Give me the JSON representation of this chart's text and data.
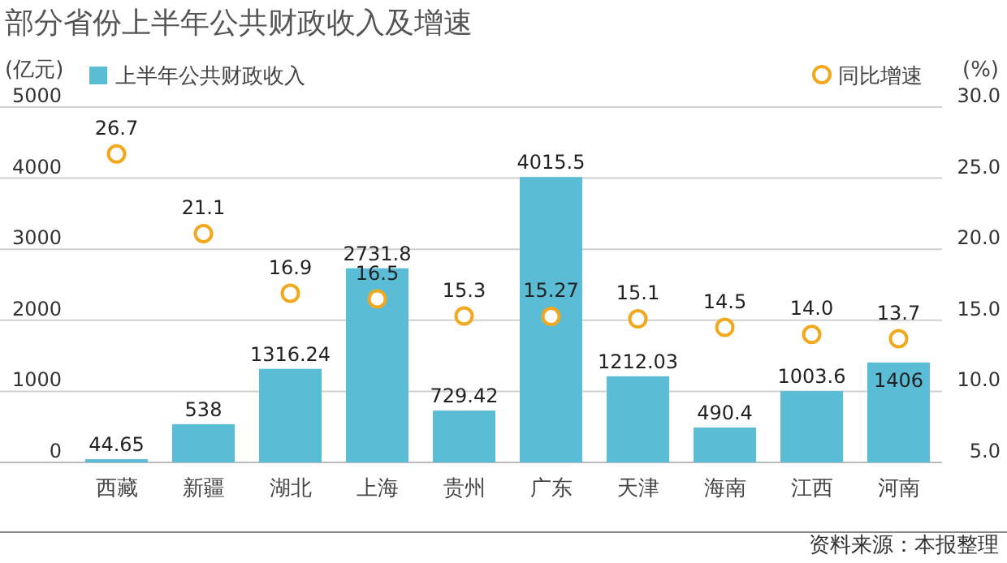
{
  "chart_data": {
    "type": "bar",
    "title": "部分省份上半年公共财政收入及增速",
    "ylabel": "(亿元)",
    "y2label": "(%)",
    "categories": [
      "西藏",
      "新疆",
      "湖北",
      "上海",
      "贵州",
      "广东",
      "天津",
      "海南",
      "江西",
      "河南"
    ],
    "series": [
      {
        "name": "上半年公共财政收入",
        "type": "bar",
        "color": "#5bbcd6",
        "values": [
          44.65,
          538,
          1316.24,
          2731.8,
          729.42,
          4015.5,
          1212.03,
          490.4,
          1003.6,
          1406
        ]
      },
      {
        "name": "同比增速",
        "type": "scatter",
        "axis": "y2",
        "marker": "circle",
        "color": "#f2a81d",
        "values": [
          26.7,
          21.1,
          16.9,
          16.5,
          15.3,
          15.27,
          15.1,
          14.5,
          14.0,
          13.7
        ],
        "value_labels": [
          "26.7",
          "21.1",
          "16.9",
          "16.5",
          "15.3",
          "15.27",
          "15.1",
          "14.5",
          "14.0",
          "13.7"
        ]
      }
    ],
    "ylim": [
      0,
      5000
    ],
    "yticks": [
      0,
      1000,
      2000,
      3000,
      4000,
      5000
    ],
    "y2lim": [
      5,
      30
    ],
    "y2ticks": [
      {
        "value": 5,
        "label": "5.0"
      },
      {
        "value": 10,
        "label": "10.0"
      },
      {
        "value": 15,
        "label": "15.0"
      },
      {
        "value": 20,
        "label": "20.0"
      },
      {
        "value": 25,
        "label": "25.0"
      },
      {
        "value": 30,
        "label": "30.0"
      }
    ],
    "grid": "y",
    "legend": "top",
    "data_labels": true,
    "annotations": [
      "资料来源：本报整理"
    ]
  }
}
